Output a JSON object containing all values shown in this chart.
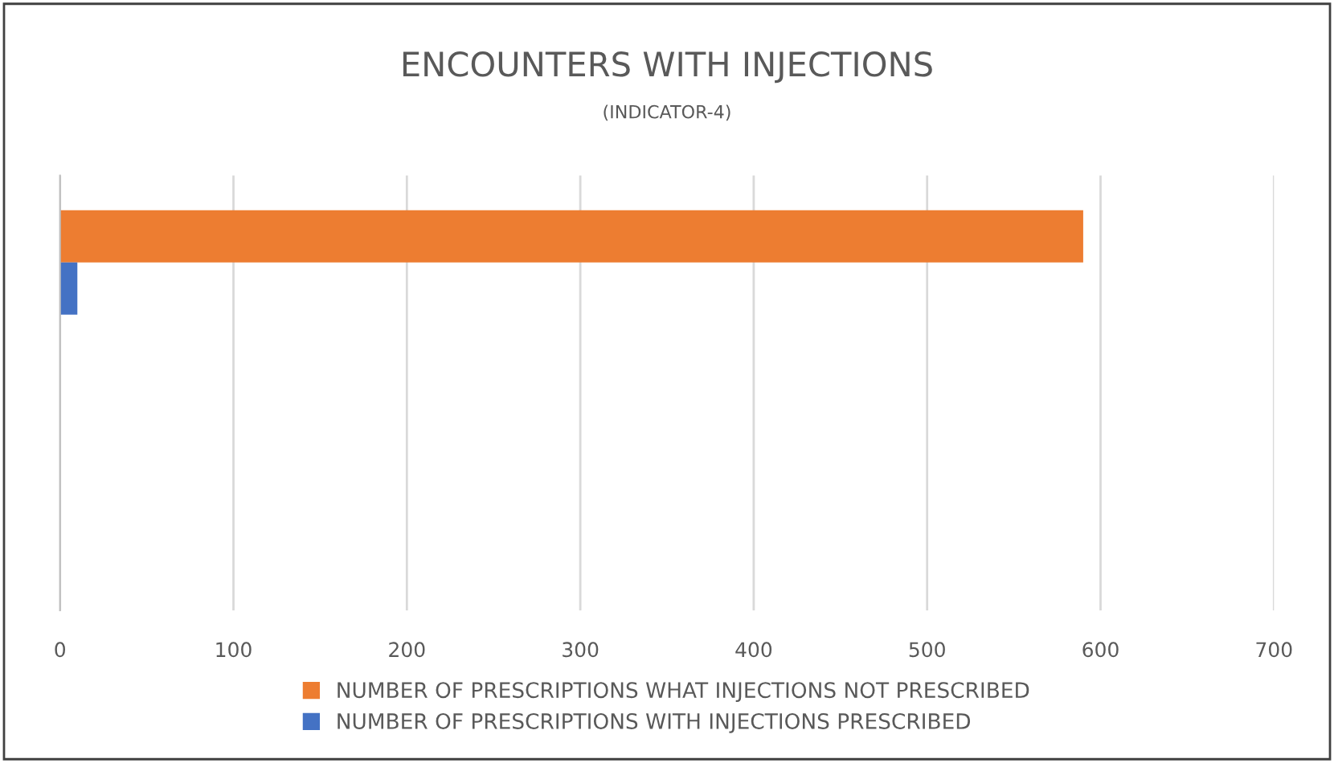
{
  "chart_data": {
    "type": "bar",
    "orientation": "horizontal",
    "title": "ENCOUNTERS WITH INJECTIONS",
    "subtitle": "(INDICATOR-4)",
    "categories": [
      null
    ],
    "series": [
      {
        "name": "NUMBER OF PRESCRIPTIONS WHAT INJECTIONS NOT PRESCRIBED",
        "color": "#ed7d31",
        "values": [
          590
        ]
      },
      {
        "name": "NUMBER OF PRESCRIPTIONS WITH INJECTIONS PRESCRIBED",
        "color": "#4472c4",
        "values": [
          10
        ]
      }
    ],
    "xlim": [
      0,
      700
    ],
    "xticks": [
      0,
      100,
      200,
      300,
      400,
      500,
      600,
      700
    ],
    "grid": "x",
    "legend": "bottom"
  }
}
